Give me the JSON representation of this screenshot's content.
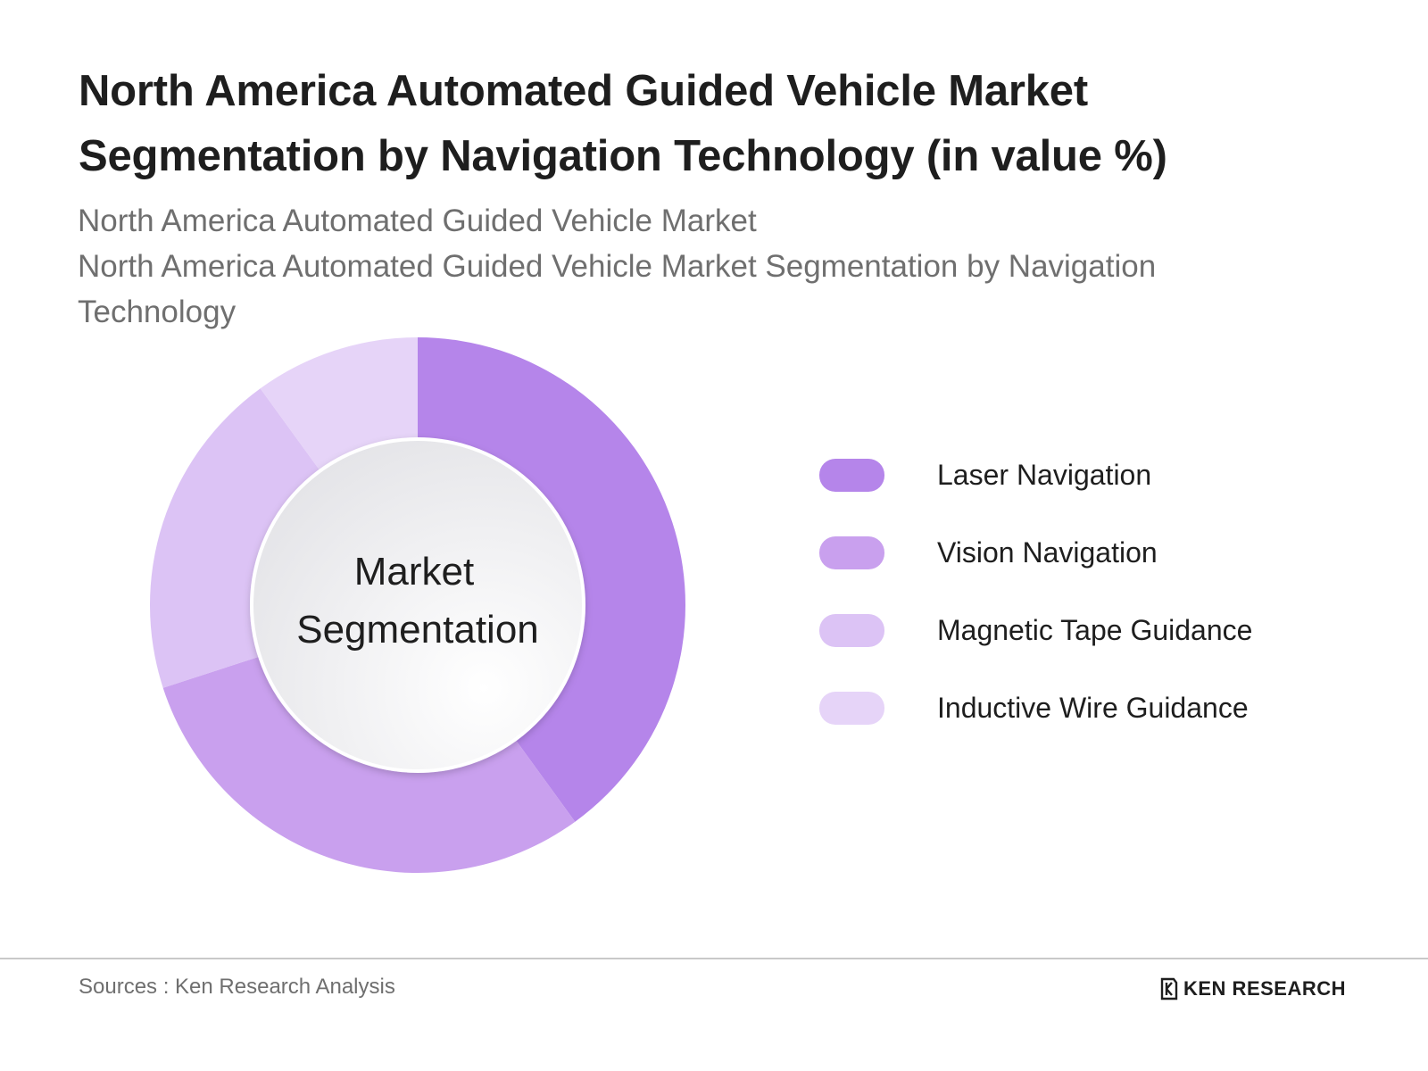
{
  "header": {
    "title": "North America Automated Guided Vehicle Market Segmentation by Navigation Technology (in value %)",
    "subtitle_line1": "North America Automated Guided Vehicle Market",
    "subtitle_line2": "North America Automated Guided Vehicle Market Segmentation by Navigation Technology"
  },
  "chart_data": {
    "type": "pie",
    "variant": "donut",
    "title": "North America Automated Guided Vehicle Market Segmentation by Navigation Technology (in value %)",
    "center_label_line1": "Market",
    "center_label_line2": "Segmentation",
    "categories": [
      "Laser Navigation",
      "Vision Navigation",
      "Magnetic Tape Guidance",
      "Inductive Wire Guidance"
    ],
    "values": [
      40,
      30,
      20,
      10
    ],
    "colors": [
      "#b585ea",
      "#c9a0ee",
      "#dcc3f5",
      "#e6d4f8"
    ],
    "legend_position": "right"
  },
  "footer": {
    "sources": "Sources : Ken Research Analysis",
    "brand": "KEN RESEARCH"
  }
}
